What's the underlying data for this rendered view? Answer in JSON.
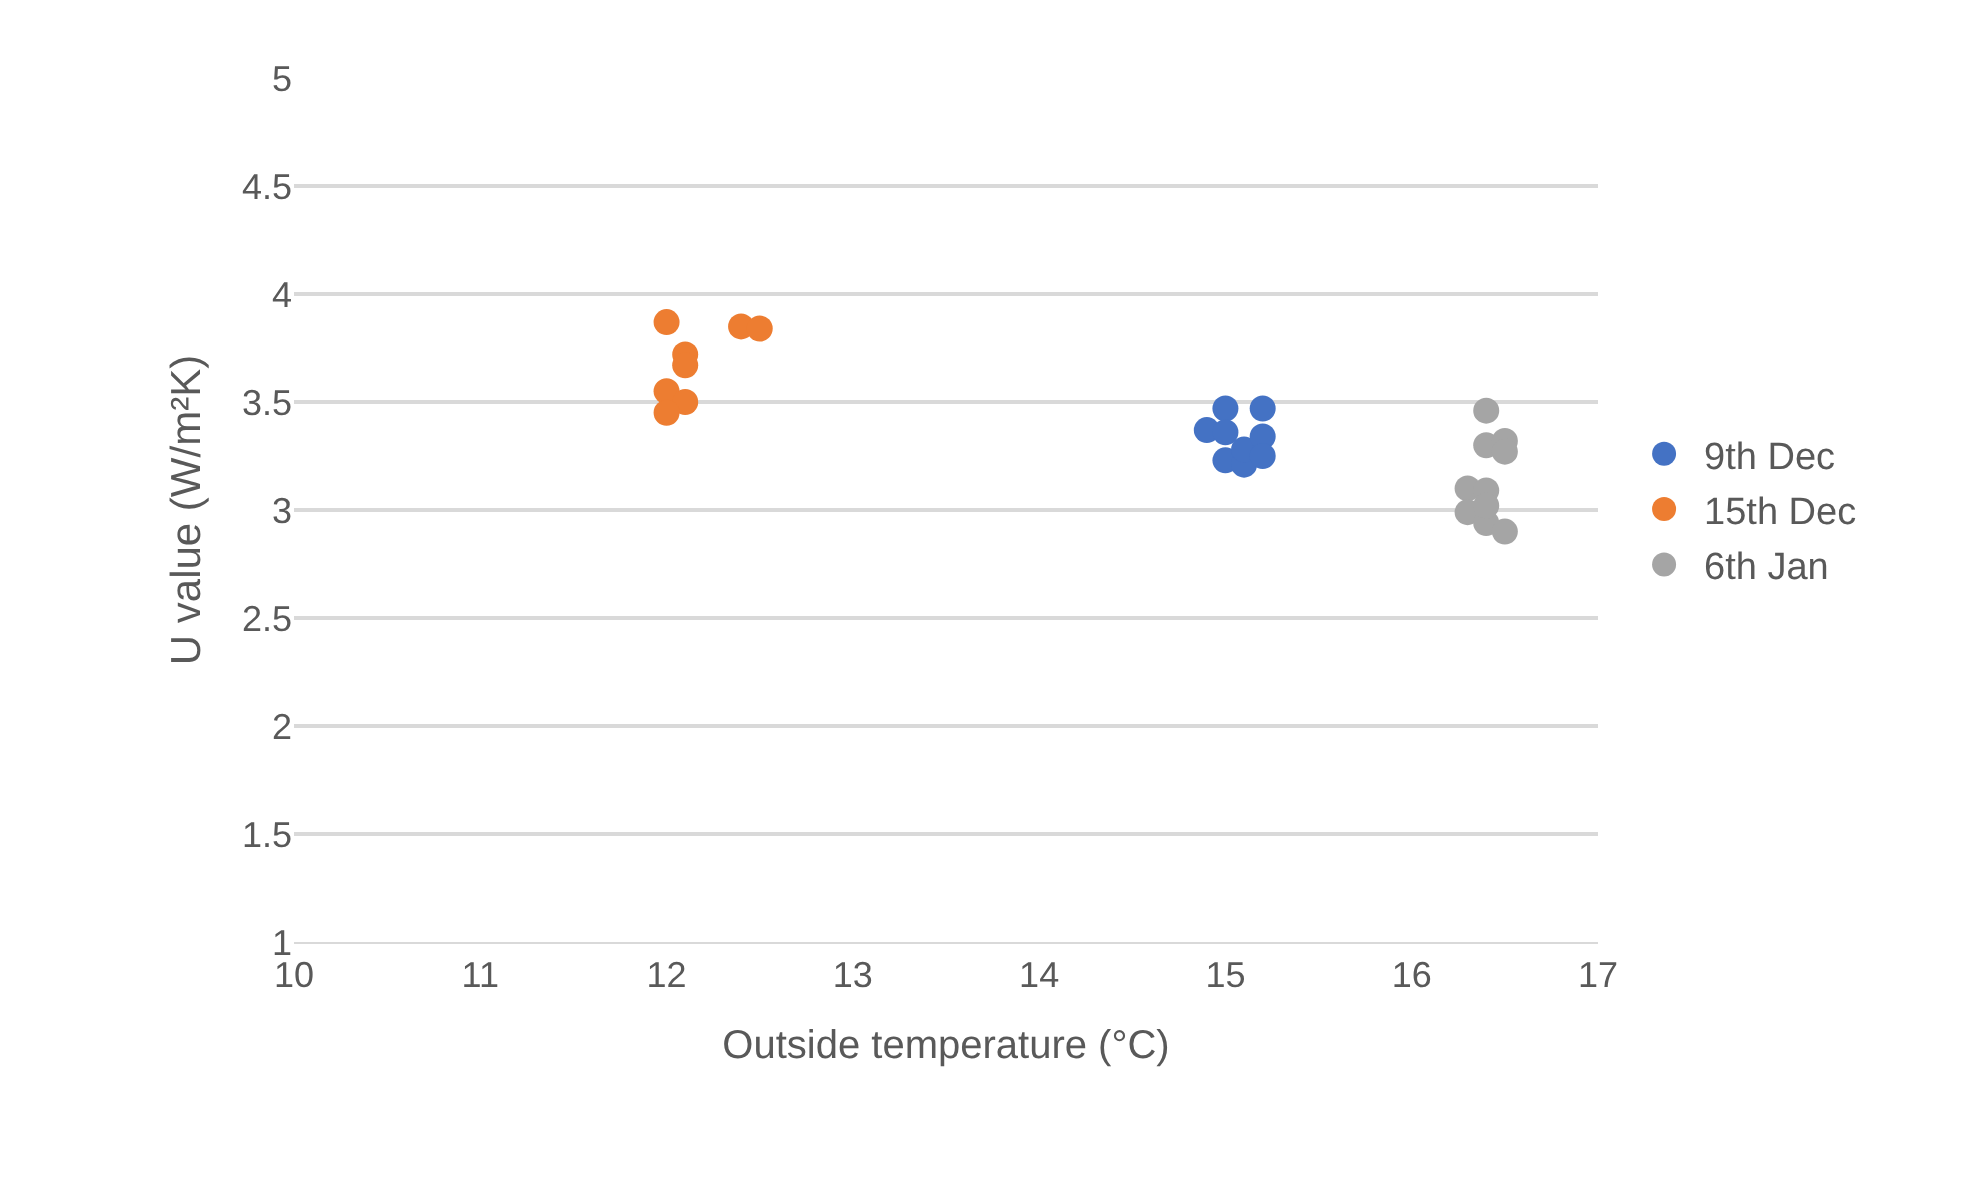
{
  "chart_data": {
    "type": "scatter",
    "xlabel": "Outside temperature (°C)",
    "ylabel": "U value (W/m²K)",
    "xlim": [
      10,
      17
    ],
    "xticks": [
      10,
      11,
      12,
      13,
      14,
      15,
      16,
      17
    ],
    "ylim": [
      1,
      5
    ],
    "yticks": [
      1,
      1.5,
      2,
      2.5,
      3,
      3.5,
      4,
      4.5,
      5
    ],
    "grid": "y",
    "legend": "right",
    "marker": "circle",
    "series": [
      {
        "name": "9th Dec",
        "color": "#4472c4",
        "x": [
          14.9,
          15,
          15.2,
          15,
          15.1,
          15.1,
          15.2,
          15.2,
          15
        ],
        "values": [
          3.37,
          3.47,
          3.47,
          3.23,
          3.21,
          3.28,
          3.34,
          3.25,
          3.36
        ]
      },
      {
        "name": "15th Dec",
        "color": "#ed7d31",
        "x": [
          12,
          12.4,
          12.5,
          12.1,
          12.1,
          12,
          12.1,
          12
        ],
        "values": [
          3.87,
          3.85,
          3.84,
          3.72,
          3.67,
          3.55,
          3.5,
          3.45
        ]
      },
      {
        "name": "6th Jan",
        "color": "#a5a5a5",
        "x": [
          16.4,
          16.4,
          16.5,
          16.5,
          16.3,
          16.4,
          16.3,
          16.4,
          16.5,
          16.4
        ],
        "values": [
          3.46,
          3.3,
          3.32,
          3.27,
          3.1,
          3.09,
          2.99,
          2.94,
          2.9,
          3.02
        ]
      }
    ]
  }
}
